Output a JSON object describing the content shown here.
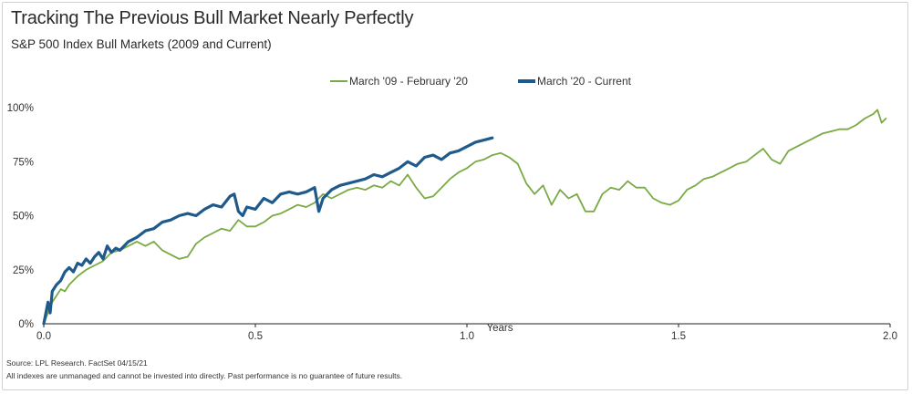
{
  "title": "Tracking The Previous Bull Market Nearly Perfectly",
  "subtitle": "S&P 500 Index Bull Markets (2009 and Current)",
  "footer": {
    "source": "Source: LPL Research. FactSet 04/15/21",
    "disclaimer": "All indexes are unmanaged and cannot be invested into directly. Past performance is no guarantee of future results."
  },
  "chart_data": {
    "type": "line",
    "title": "Tracking The Previous Bull Market Nearly Perfectly",
    "subtitle": "S&P 500 Index Bull Markets (2009 and Current)",
    "xlabel": "Years",
    "ylabel": "",
    "xlim": [
      0,
      2.0
    ],
    "ylim": [
      0,
      1.0
    ],
    "x_ticks": [
      0.0,
      0.5,
      1.0,
      1.5,
      2.0
    ],
    "x_tick_labels": [
      "0.0",
      "0.5",
      "1.0",
      "1.5",
      "2.0"
    ],
    "y_ticks": [
      0,
      0.25,
      0.5,
      0.75,
      1.0
    ],
    "y_tick_labels": [
      "0%",
      "25%",
      "50%",
      "75%",
      "100%"
    ],
    "grid": false,
    "legend_position": "top-center",
    "series": [
      {
        "name": "March '09 - February '20",
        "color": "#7aaa44",
        "x": [
          0.0,
          0.01,
          0.02,
          0.03,
          0.04,
          0.05,
          0.06,
          0.08,
          0.1,
          0.12,
          0.14,
          0.16,
          0.18,
          0.2,
          0.22,
          0.24,
          0.26,
          0.28,
          0.3,
          0.32,
          0.34,
          0.36,
          0.38,
          0.4,
          0.42,
          0.44,
          0.46,
          0.48,
          0.5,
          0.52,
          0.54,
          0.56,
          0.58,
          0.6,
          0.62,
          0.64,
          0.66,
          0.68,
          0.7,
          0.72,
          0.74,
          0.76,
          0.78,
          0.8,
          0.82,
          0.84,
          0.86,
          0.88,
          0.9,
          0.92,
          0.94,
          0.96,
          0.98,
          1.0,
          1.02,
          1.04,
          1.06,
          1.08,
          1.1,
          1.12,
          1.14,
          1.16,
          1.18,
          1.2,
          1.22,
          1.24,
          1.26,
          1.28,
          1.3,
          1.32,
          1.34,
          1.36,
          1.38,
          1.4,
          1.42,
          1.44,
          1.46,
          1.48,
          1.5,
          1.52,
          1.54,
          1.56,
          1.58,
          1.6,
          1.62,
          1.64,
          1.66,
          1.68,
          1.7,
          1.72,
          1.74,
          1.76,
          1.78,
          1.8,
          1.82,
          1.84,
          1.86,
          1.88,
          1.9,
          1.92,
          1.94,
          1.95,
          1.96,
          1.97,
          1.98,
          1.99
        ],
        "y": [
          0.0,
          0.05,
          0.1,
          0.13,
          0.16,
          0.15,
          0.18,
          0.22,
          0.25,
          0.27,
          0.29,
          0.33,
          0.34,
          0.36,
          0.38,
          0.36,
          0.38,
          0.34,
          0.32,
          0.3,
          0.31,
          0.37,
          0.4,
          0.42,
          0.44,
          0.43,
          0.48,
          0.45,
          0.45,
          0.47,
          0.5,
          0.51,
          0.53,
          0.55,
          0.54,
          0.56,
          0.6,
          0.58,
          0.6,
          0.62,
          0.63,
          0.62,
          0.64,
          0.63,
          0.66,
          0.64,
          0.69,
          0.63,
          0.58,
          0.59,
          0.63,
          0.67,
          0.7,
          0.72,
          0.75,
          0.76,
          0.78,
          0.79,
          0.77,
          0.74,
          0.65,
          0.6,
          0.64,
          0.55,
          0.62,
          0.58,
          0.6,
          0.52,
          0.52,
          0.6,
          0.63,
          0.62,
          0.66,
          0.63,
          0.63,
          0.58,
          0.56,
          0.55,
          0.57,
          0.62,
          0.64,
          0.67,
          0.68,
          0.7,
          0.72,
          0.74,
          0.75,
          0.78,
          0.81,
          0.76,
          0.74,
          0.8,
          0.82,
          0.84,
          0.86,
          0.88,
          0.89,
          0.9,
          0.9,
          0.92,
          0.95,
          0.96,
          0.97,
          0.99,
          0.93,
          0.95
        ]
      },
      {
        "name": "March '20 - Current",
        "color": "#1f5a8c",
        "x": [
          0.0,
          0.01,
          0.015,
          0.02,
          0.03,
          0.04,
          0.05,
          0.06,
          0.07,
          0.08,
          0.09,
          0.1,
          0.11,
          0.12,
          0.13,
          0.14,
          0.15,
          0.16,
          0.17,
          0.18,
          0.2,
          0.22,
          0.24,
          0.26,
          0.28,
          0.3,
          0.32,
          0.34,
          0.36,
          0.38,
          0.4,
          0.42,
          0.44,
          0.45,
          0.46,
          0.47,
          0.48,
          0.5,
          0.52,
          0.54,
          0.56,
          0.58,
          0.6,
          0.62,
          0.64,
          0.65,
          0.66,
          0.68,
          0.7,
          0.72,
          0.74,
          0.76,
          0.78,
          0.8,
          0.82,
          0.84,
          0.86,
          0.88,
          0.9,
          0.92,
          0.94,
          0.96,
          0.98,
          1.0,
          1.02,
          1.04,
          1.06
        ],
        "y": [
          0.0,
          0.1,
          0.05,
          0.15,
          0.18,
          0.2,
          0.24,
          0.26,
          0.24,
          0.28,
          0.27,
          0.3,
          0.28,
          0.31,
          0.33,
          0.3,
          0.36,
          0.33,
          0.35,
          0.34,
          0.38,
          0.4,
          0.43,
          0.44,
          0.47,
          0.48,
          0.5,
          0.51,
          0.5,
          0.53,
          0.55,
          0.54,
          0.59,
          0.6,
          0.52,
          0.5,
          0.54,
          0.53,
          0.58,
          0.56,
          0.6,
          0.61,
          0.6,
          0.61,
          0.63,
          0.52,
          0.58,
          0.62,
          0.64,
          0.65,
          0.66,
          0.67,
          0.69,
          0.68,
          0.7,
          0.72,
          0.75,
          0.73,
          0.77,
          0.78,
          0.76,
          0.79,
          0.8,
          0.82,
          0.84,
          0.85,
          0.86
        ]
      }
    ]
  }
}
